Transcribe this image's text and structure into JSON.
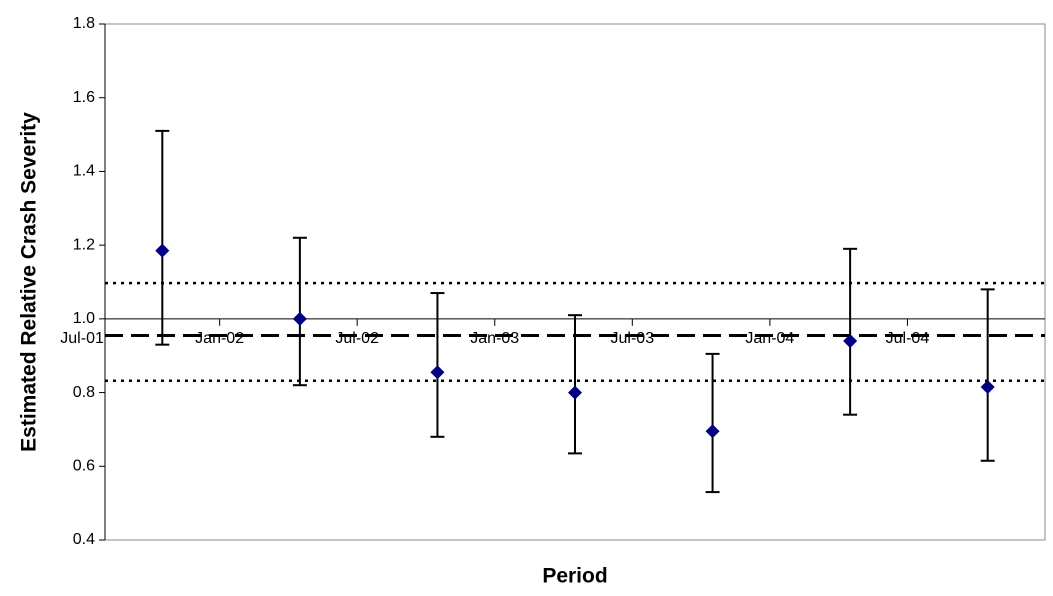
{
  "chart_data": {
    "type": "errorbar-scatter",
    "x_label": "Period",
    "y_label": "Estimated Relative Crash Severity",
    "x": [
      "2001-10",
      "2002-04",
      "2002-10",
      "2003-04",
      "2003-10",
      "2004-04",
      "2004-10"
    ],
    "series": [
      {
        "color": "#000080",
        "values": [
          1.185,
          1.0,
          0.855,
          0.8,
          0.695,
          0.94,
          0.815
        ],
        "err_low": [
          0.93,
          0.82,
          0.68,
          0.635,
          0.53,
          0.74,
          0.615
        ],
        "err_high": [
          1.51,
          1.22,
          1.07,
          1.01,
          0.905,
          1.19,
          1.08
        ]
      }
    ],
    "xlim": [
      "2001-08",
      "2005-01"
    ],
    "xticks": [
      {
        "value": "2001-07",
        "label": "Jul-01"
      },
      {
        "value": "2002-01",
        "label": "Jan-02"
      },
      {
        "value": "2002-07",
        "label": "Jul-02"
      },
      {
        "value": "2003-01",
        "label": "Jan-03"
      },
      {
        "value": "2003-07",
        "label": "Jul-03"
      },
      {
        "value": "2004-01",
        "label": "Jan-04"
      },
      {
        "value": "2004-07",
        "label": "Jul-04"
      }
    ],
    "ylim": [
      0.4,
      1.8
    ],
    "yticks": [
      0.4,
      0.6,
      0.8,
      {
        "value": 1,
        "label": "1.0"
      },
      1.2,
      1.4,
      1.6,
      1.8
    ],
    "x_axis_crosses": 1,
    "reference_lines": [
      {
        "value": 1.097,
        "style": "dotted"
      },
      {
        "value": 0.955,
        "style": "dashed"
      },
      {
        "value": 0.832,
        "style": "dotted"
      }
    ],
    "grid": false
  }
}
